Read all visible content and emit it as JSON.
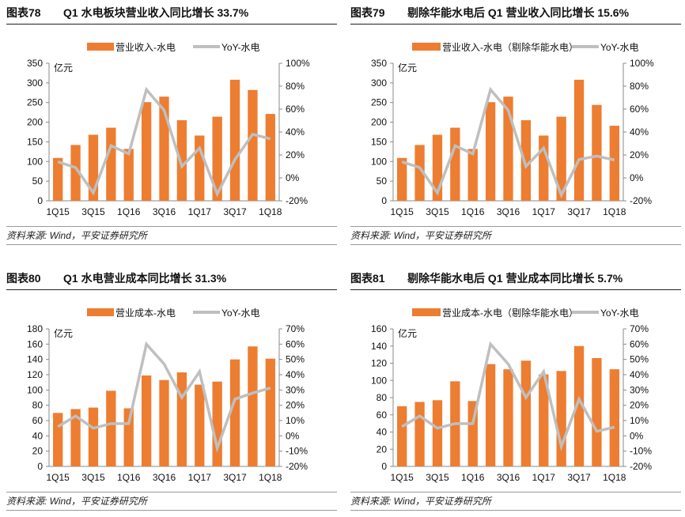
{
  "source": "资料来源: Wind，平安证券研究所",
  "chart_data": [
    {
      "type": "bar",
      "figure": "图表78",
      "title": "Q1 水电板块营业收入同比增长 33.7%",
      "categories": [
        "1Q15",
        "2Q15",
        "3Q15",
        "4Q15",
        "1Q16",
        "2Q16",
        "3Q16",
        "4Q16",
        "1Q17",
        "2Q17",
        "3Q17",
        "4Q17",
        "1Q18"
      ],
      "xtick_labels": [
        "1Q15",
        "3Q15",
        "1Q16",
        "3Q16",
        "1Q17",
        "3Q17",
        "1Q18"
      ],
      "unit": "亿元",
      "ylim": [
        0,
        350
      ],
      "yticks": [
        0,
        50,
        100,
        150,
        200,
        250,
        300,
        350
      ],
      "y2lim": [
        -20,
        100
      ],
      "y2ticks": [
        "-20%",
        "0%",
        "20%",
        "40%",
        "60%",
        "80%",
        "100%"
      ],
      "series": [
        {
          "name": "营业收入-水电",
          "type": "bar",
          "color": "#ED7D31",
          "values": [
            109,
            142,
            168,
            186,
            132,
            251,
            265,
            205,
            166,
            214,
            308,
            282,
            221
          ]
        },
        {
          "name": "YoY-水电",
          "type": "line",
          "axis": "right",
          "color": "#BFBFBF",
          "values": [
            14,
            9,
            -13,
            28,
            21,
            77,
            59,
            10,
            26,
            -14,
            16,
            38,
            34
          ]
        }
      ],
      "legend": "top"
    },
    {
      "type": "bar",
      "figure": "图表79",
      "title": "剔除华能水电后 Q1 营业收入同比增长 15.6%",
      "categories": [
        "1Q15",
        "2Q15",
        "3Q15",
        "4Q15",
        "1Q16",
        "2Q16",
        "3Q16",
        "4Q16",
        "1Q17",
        "2Q17",
        "3Q17",
        "4Q17",
        "1Q18"
      ],
      "xtick_labels": [
        "1Q15",
        "3Q15",
        "1Q16",
        "3Q16",
        "1Q17",
        "3Q17",
        "1Q18"
      ],
      "unit": "亿元",
      "ylim": [
        0,
        350
      ],
      "yticks": [
        0,
        50,
        100,
        150,
        200,
        250,
        300,
        350
      ],
      "y2lim": [
        -20,
        100
      ],
      "y2ticks": [
        "-20%",
        "0%",
        "20%",
        "40%",
        "60%",
        "80%",
        "100%"
      ],
      "series": [
        {
          "name": "营业收入-水电（剔除华能水电）",
          "type": "bar",
          "color": "#ED7D31",
          "values": [
            109,
            142,
            168,
            186,
            132,
            251,
            265,
            205,
            166,
            214,
            308,
            244,
            191
          ]
        },
        {
          "name": "YoY-水电",
          "type": "line",
          "axis": "right",
          "color": "#BFBFBF",
          "values": [
            14,
            9,
            -13,
            28,
            21,
            77,
            59,
            10,
            26,
            -15,
            16,
            19,
            15.6
          ]
        }
      ],
      "legend": "top"
    },
    {
      "type": "bar",
      "figure": "图表80",
      "title": "Q1 水电营业成本同比增长 31.3%",
      "categories": [
        "1Q15",
        "2Q15",
        "3Q15",
        "4Q15",
        "1Q16",
        "2Q16",
        "3Q16",
        "4Q16",
        "1Q17",
        "2Q17",
        "3Q17",
        "4Q17",
        "1Q18"
      ],
      "xtick_labels": [
        "1Q15",
        "3Q15",
        "1Q16",
        "3Q16",
        "1Q17",
        "3Q17",
        "1Q18"
      ],
      "unit": "亿元",
      "ylim": [
        0,
        180
      ],
      "yticks": [
        0,
        20,
        40,
        60,
        80,
        100,
        120,
        140,
        160,
        180
      ],
      "y2lim": [
        -20,
        70
      ],
      "y2ticks": [
        "-20%",
        "-10%",
        "0%",
        "10%",
        "20%",
        "30%",
        "40%",
        "50%",
        "60%",
        "70%"
      ],
      "series": [
        {
          "name": "营业成本-水电",
          "type": "bar",
          "color": "#ED7D31",
          "values": [
            70,
            75,
            77,
            99,
            76,
            119,
            113,
            123,
            107,
            111,
            140,
            157,
            141
          ]
        },
        {
          "name": "YoY-水电",
          "type": "line",
          "axis": "right",
          "color": "#BFBFBF",
          "values": [
            6,
            13,
            5,
            8,
            8,
            60,
            47,
            25,
            42,
            -8,
            24,
            28,
            31.3
          ]
        }
      ],
      "legend": "top"
    },
    {
      "type": "bar",
      "figure": "图表81",
      "title": "剔除华能水电后 Q1 营业成本同比增长 5.7%",
      "categories": [
        "1Q15",
        "2Q15",
        "3Q15",
        "4Q15",
        "1Q16",
        "2Q16",
        "3Q16",
        "4Q16",
        "1Q17",
        "2Q17",
        "3Q17",
        "4Q17",
        "1Q18"
      ],
      "xtick_labels": [
        "1Q15",
        "3Q15",
        "1Q16",
        "3Q16",
        "1Q17",
        "3Q17",
        "1Q18"
      ],
      "unit": "亿元",
      "ylim": [
        0,
        160
      ],
      "yticks": [
        0,
        20,
        40,
        60,
        80,
        100,
        120,
        140,
        160
      ],
      "y2lim": [
        -20,
        70
      ],
      "y2ticks": [
        "-20%",
        "-10%",
        "0%",
        "10%",
        "20%",
        "30%",
        "40%",
        "50%",
        "60%",
        "70%"
      ],
      "series": [
        {
          "name": "营业成本-水电（剔除华能水电）",
          "type": "bar",
          "color": "#ED7D31",
          "values": [
            70,
            75,
            77,
            99,
            76,
            119,
            113,
            123,
            107,
            111,
            140,
            126,
            113
          ]
        },
        {
          "name": "YoY-水电",
          "type": "line",
          "axis": "right",
          "color": "#BFBFBF",
          "values": [
            6,
            13,
            5,
            8,
            8,
            60,
            47,
            25,
            42,
            -7,
            24,
            3,
            5.7
          ]
        }
      ],
      "legend": "top"
    }
  ]
}
